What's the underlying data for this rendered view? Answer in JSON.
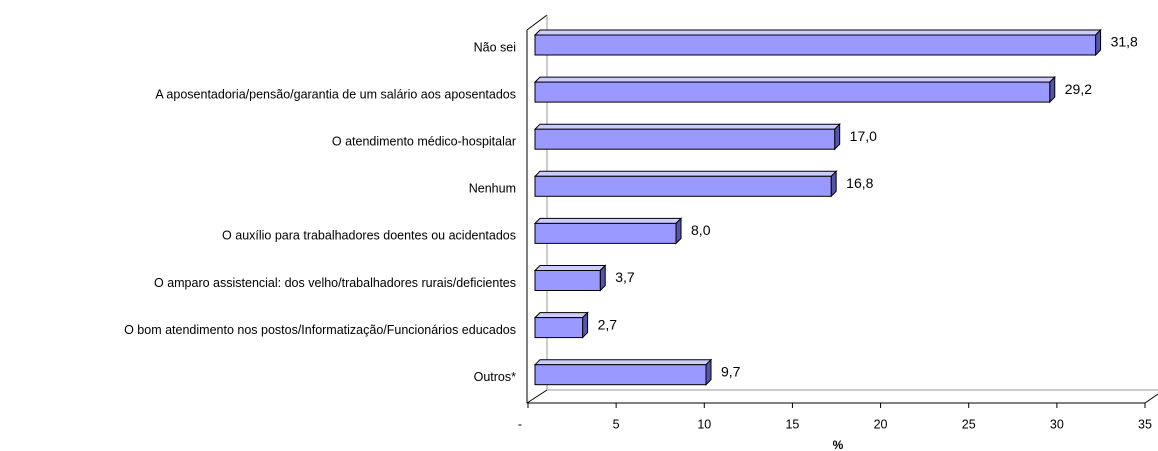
{
  "chart_data": {
    "type": "bar",
    "orientation": "horizontal",
    "categories": [
      "Não sei",
      "A aposentadoria/pensão/garantia de um salário aos aposentados",
      "O atendimento médico-hospitalar",
      "Nenhum",
      "O auxílio para trabalhadores doentes ou acidentados",
      "O amparo assistencial: dos velho/trabalhadores rurais/deficientes",
      "O bom atendimento nos postos/Informatização/Funcionários educados",
      "Outros*"
    ],
    "values": [
      31.8,
      29.2,
      17.0,
      16.8,
      8.0,
      3.7,
      2.7,
      9.7
    ],
    "value_labels": [
      "31,8",
      "29,2",
      "17,0",
      "16,8",
      "8,0",
      "3,7",
      "2,7",
      "9,7"
    ],
    "color": "#9999ff",
    "xlim": [
      0,
      35
    ],
    "xticks": [
      {
        "value": 0,
        "label": "-"
      },
      5,
      10,
      15,
      20,
      25,
      30,
      35
    ],
    "x_label": "%"
  }
}
